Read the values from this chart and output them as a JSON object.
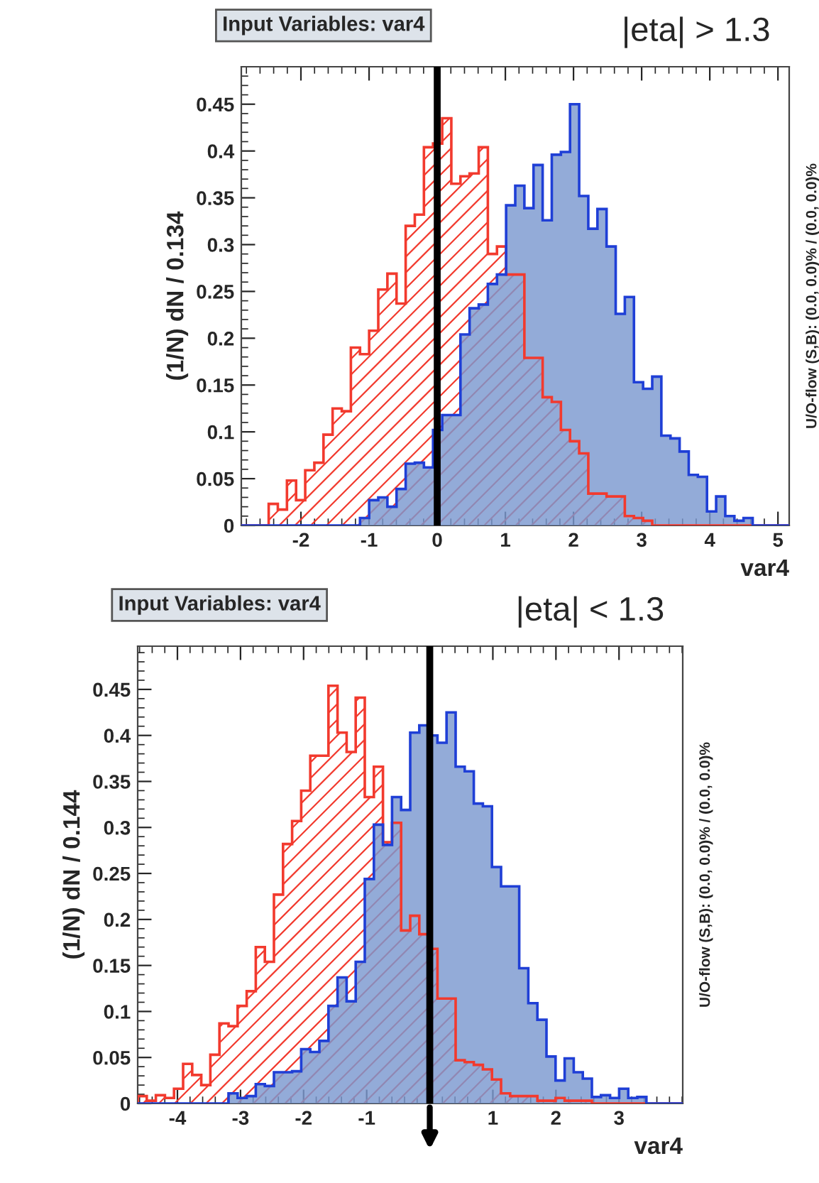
{
  "chart_data": [
    {
      "type": "histogram",
      "title": "Input Variables: var4",
      "xlabel": "var4",
      "ylabel": "(1/N) dN / 0.134",
      "annotations": [
        "|eta| > 1.3",
        "U/O-flow (S,B): (0.0, 0.0)% / (0.0, 0.0)%"
      ],
      "bins": [
        -2.875,
        -2.741,
        -2.607,
        -2.473,
        -2.339,
        -2.205,
        -2.071,
        -1.937,
        -1.803,
        -1.669,
        -1.535,
        -1.401,
        -1.267,
        -1.133,
        -0.999,
        -0.865,
        -0.731,
        -0.597,
        -0.463,
        -0.329,
        -0.195,
        -0.061,
        0.073,
        0.207,
        0.341,
        0.475,
        0.609,
        0.743,
        0.877,
        1.011,
        1.145,
        1.279,
        1.413,
        1.547,
        1.681,
        1.815,
        1.949,
        2.083,
        2.217,
        2.351,
        2.485,
        2.619,
        2.753,
        2.887,
        3.021,
        3.155,
        3.289,
        3.423,
        3.557,
        3.691,
        3.825,
        3.959,
        4.093,
        4.227,
        4.361,
        4.495,
        4.629,
        4.763,
        4.897,
        5.031,
        5.165
      ],
      "series": [
        {
          "color": "#7b98cf",
          "values": [
            0,
            0,
            0,
            0,
            0,
            0,
            0,
            0,
            0,
            0,
            0,
            0,
            0,
            0.008,
            0.027,
            0.03,
            0.02,
            0.039,
            0.066,
            0.067,
            0.062,
            0.102,
            0.118,
            0.118,
            0.204,
            0.232,
            0.236,
            0.258,
            0.268,
            0.342,
            0.363,
            0.339,
            0.385,
            0.326,
            0.396,
            0.399,
            0.45,
            0.352,
            0.317,
            0.338,
            0.298,
            0.226,
            0.244,
            0.153,
            0.146,
            0.159,
            0.096,
            0.093,
            0.079,
            0.054,
            0.052,
            0.015,
            0.031,
            0.01,
            0.005,
            0.008,
            0,
            0,
            0,
            0
          ]
        },
        {
          "color": "#f23a2e",
          "values": [
            0,
            0,
            0,
            0.023,
            0.017,
            0.048,
            0.027,
            0.059,
            0.067,
            0.097,
            0.125,
            0.122,
            0.19,
            0.183,
            0.208,
            0.252,
            0.269,
            0.237,
            0.32,
            0.332,
            0.404,
            0.408,
            0.435,
            0.365,
            0.373,
            0.376,
            0.404,
            0.29,
            0.298,
            0.268,
            0.268,
            0.179,
            0.179,
            0.137,
            0.132,
            0.102,
            0.09,
            0.077,
            0.034,
            0.034,
            0.031,
            0.031,
            0.01,
            0.008,
            0.005,
            0,
            0,
            0,
            0,
            0,
            0,
            0,
            0,
            0,
            0,
            0,
            0,
            0,
            0,
            0
          ]
        }
      ],
      "xlim": [
        -2.875,
        5.165
      ],
      "xticks": [
        -2,
        -1,
        0,
        1,
        2,
        3,
        4,
        5
      ],
      "ylim": [
        0,
        0.49
      ],
      "yticks": [
        0,
        0.05,
        0.1,
        0.15,
        0.2,
        0.25,
        0.3,
        0.35,
        0.4,
        0.45
      ],
      "ref_lines": [
        {
          "axis": "x",
          "value": 0,
          "color": "#000000"
        }
      ]
    },
    {
      "type": "histogram",
      "title": "Input Variables: var4",
      "xlabel": "var4",
      "ylabel": "(1/N) dN / 0.144",
      "annotations": [
        "|eta| < 1.3",
        "U/O-flow (S,B): (0.0, 0.0)% / (0.0, 0.0)%"
      ],
      "bins": [
        -4.63,
        -4.486,
        -4.342,
        -4.198,
        -4.054,
        -3.91,
        -3.766,
        -3.622,
        -3.478,
        -3.334,
        -3.19,
        -3.046,
        -2.902,
        -2.758,
        -2.614,
        -2.47,
        -2.326,
        -2.182,
        -2.038,
        -1.894,
        -1.75,
        -1.606,
        -1.462,
        -1.318,
        -1.174,
        -1.03,
        -0.886,
        -0.742,
        -0.598,
        -0.454,
        -0.31,
        -0.166,
        -0.022,
        0.122,
        0.266,
        0.41,
        0.554,
        0.698,
        0.842,
        0.986,
        1.13,
        1.274,
        1.418,
        1.562,
        1.706,
        1.85,
        1.994,
        2.138,
        2.282,
        2.426,
        2.57,
        2.714,
        2.858,
        3.002,
        3.146,
        3.29,
        3.434,
        3.578,
        3.722,
        3.866,
        4.01
      ],
      "series": [
        {
          "color": "#7b98cf",
          "values": [
            0,
            0,
            0,
            0,
            0,
            0,
            0,
            0,
            0,
            0,
            0.011,
            0.006,
            0.008,
            0.021,
            0.019,
            0.034,
            0.034,
            0.035,
            0.059,
            0.056,
            0.068,
            0.106,
            0.137,
            0.111,
            0.154,
            0.244,
            0.303,
            0.281,
            0.333,
            0.319,
            0.403,
            0.411,
            0.4,
            0.392,
            0.425,
            0.366,
            0.361,
            0.326,
            0.323,
            0.257,
            0.236,
            0.236,
            0.147,
            0.109,
            0.091,
            0.051,
            0.025,
            0.049,
            0.034,
            0.027,
            0.007,
            0.009,
            0.006,
            0.016,
            0.006,
            0.007,
            0,
            0,
            0,
            0
          ]
        },
        {
          "color": "#f23a2e",
          "values": [
            0.008,
            0.003,
            0.009,
            0.006,
            0.016,
            0.043,
            0.031,
            0.02,
            0.053,
            0.087,
            0.084,
            0.106,
            0.122,
            0.17,
            0.154,
            0.227,
            0.282,
            0.307,
            0.34,
            0.378,
            0.378,
            0.454,
            0.403,
            0.382,
            0.441,
            0.333,
            0.366,
            0.284,
            0.305,
            0.188,
            0.204,
            0.184,
            0.168,
            0.114,
            0.114,
            0.047,
            0.045,
            0.042,
            0.037,
            0.026,
            0.011,
            0.008,
            0.008,
            0.008,
            0.003,
            0.003,
            0.006,
            0.003,
            0.003,
            0.003,
            0,
            0,
            0,
            0,
            0,
            0,
            0,
            0,
            0,
            0
          ]
        }
      ],
      "xlim": [
        -4.63,
        4.01
      ],
      "xticks": [
        -4,
        -3,
        -2,
        -1,
        {
          "value": 0,
          "label": null
        },
        1,
        2,
        3
      ],
      "ylim": [
        0,
        0.497
      ],
      "yticks": [
        0,
        0.05,
        0.1,
        0.15,
        0.2,
        0.25,
        0.3,
        0.35,
        0.4,
        0.45
      ],
      "ref_lines": [
        {
          "axis": "x",
          "value": 0,
          "color": "#000000"
        }
      ]
    }
  ]
}
